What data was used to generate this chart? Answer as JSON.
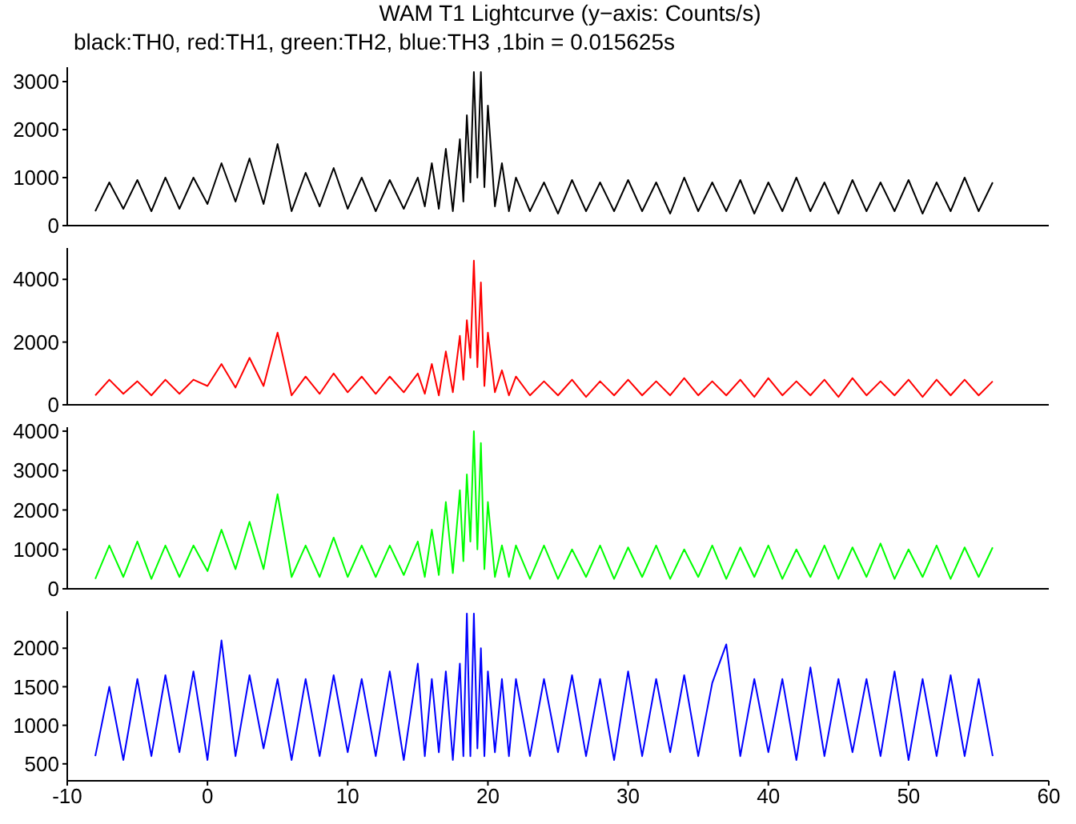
{
  "chart_data": [
    {
      "type": "line",
      "title": "WAM T1 Lightcurve (y−axis: Counts/s)",
      "subtitle": "black:TH0, red:TH1, green:TH2, blue:TH3 ,1bin = 0.015625s",
      "xlim": [
        -10,
        60
      ],
      "xticks": [
        -10,
        0,
        10,
        20,
        30,
        40,
        50,
        60
      ],
      "ylim": [
        0,
        3300
      ],
      "yticks": [
        0,
        1000,
        2000,
        3000
      ],
      "tick_labels": "y",
      "x": [
        -8,
        -7,
        -6,
        -5,
        -4,
        -3,
        -2,
        -1,
        0,
        1,
        2,
        3,
        4,
        5,
        6,
        7,
        8,
        9,
        10,
        11,
        12,
        13,
        14,
        15,
        15.5,
        16,
        16.5,
        17,
        17.5,
        18,
        18.25,
        18.5,
        18.75,
        19,
        19.25,
        19.5,
        19.75,
        20,
        20.5,
        21,
        21.5,
        22,
        23,
        24,
        25,
        26,
        27,
        28,
        29,
        30,
        31,
        32,
        33,
        34,
        35,
        36,
        37,
        38,
        39,
        40,
        41,
        42,
        43,
        44,
        45,
        46,
        47,
        48,
        49,
        50,
        51,
        52,
        53,
        54,
        55,
        56
      ],
      "series": [
        {
          "color": "#000000",
          "values": [
            300,
            900,
            350,
            950,
            300,
            1000,
            350,
            1000,
            450,
            1300,
            500,
            1400,
            450,
            1700,
            300,
            1100,
            400,
            1200,
            350,
            1000,
            300,
            950,
            350,
            1000,
            400,
            1300,
            350,
            1600,
            300,
            1800,
            500,
            2300,
            900,
            3200,
            1000,
            3200,
            800,
            2500,
            400,
            1300,
            300,
            1000,
            300,
            900,
            250,
            950,
            300,
            900,
            300,
            950,
            300,
            900,
            250,
            1000,
            300,
            900,
            300,
            950,
            250,
            900,
            300,
            1000,
            300,
            900,
            250,
            950,
            300,
            900,
            300,
            950,
            250,
            900,
            300,
            1000,
            300,
            900
          ]
        }
      ]
    },
    {
      "type": "line",
      "xlim": [
        -10,
        60
      ],
      "xticks": [
        -10,
        0,
        10,
        20,
        30,
        40,
        50,
        60
      ],
      "ylim": [
        0,
        5000
      ],
      "yticks": [
        0,
        2000,
        4000
      ],
      "tick_labels": "y",
      "x": [
        -8,
        -7,
        -6,
        -5,
        -4,
        -3,
        -2,
        -1,
        0,
        1,
        2,
        3,
        4,
        5,
        6,
        7,
        8,
        9,
        10,
        11,
        12,
        13,
        14,
        15,
        15.5,
        16,
        16.5,
        17,
        17.5,
        18,
        18.25,
        18.5,
        18.75,
        19,
        19.25,
        19.5,
        19.75,
        20,
        20.5,
        21,
        21.5,
        22,
        23,
        24,
        25,
        26,
        27,
        28,
        29,
        30,
        31,
        32,
        33,
        34,
        35,
        36,
        37,
        38,
        39,
        40,
        41,
        42,
        43,
        44,
        45,
        46,
        47,
        48,
        49,
        50,
        51,
        52,
        53,
        54,
        55,
        56
      ],
      "series": [
        {
          "color": "#ff0000",
          "values": [
            300,
            800,
            350,
            750,
            300,
            800,
            350,
            800,
            600,
            1300,
            550,
            1500,
            600,
            2300,
            300,
            900,
            350,
            1000,
            400,
            900,
            350,
            900,
            400,
            1000,
            350,
            1300,
            300,
            1700,
            400,
            2200,
            800,
            2700,
            1500,
            4600,
            1200,
            3900,
            600,
            2300,
            400,
            1100,
            300,
            900,
            300,
            750,
            300,
            800,
            250,
            750,
            300,
            800,
            300,
            750,
            300,
            850,
            300,
            750,
            300,
            800,
            250,
            850,
            300,
            750,
            300,
            800,
            250,
            850,
            300,
            750,
            300,
            800,
            250,
            800,
            300,
            800,
            300,
            750
          ]
        }
      ]
    },
    {
      "type": "line",
      "xlim": [
        -10,
        60
      ],
      "xticks": [
        -10,
        0,
        10,
        20,
        30,
        40,
        50,
        60
      ],
      "ylim": [
        0,
        4100
      ],
      "yticks": [
        0,
        1000,
        2000,
        3000,
        4000
      ],
      "tick_labels": "y",
      "x": [
        -8,
        -7,
        -6,
        -5,
        -4,
        -3,
        -2,
        -1,
        0,
        1,
        2,
        3,
        4,
        5,
        6,
        7,
        8,
        9,
        10,
        11,
        12,
        13,
        14,
        15,
        15.5,
        16,
        16.5,
        17,
        17.5,
        18,
        18.25,
        18.5,
        18.75,
        19,
        19.25,
        19.5,
        19.75,
        20,
        20.5,
        21,
        21.5,
        22,
        23,
        24,
        25,
        26,
        27,
        28,
        29,
        30,
        31,
        32,
        33,
        34,
        35,
        36,
        37,
        38,
        39,
        40,
        41,
        42,
        43,
        44,
        45,
        46,
        47,
        48,
        49,
        50,
        51,
        52,
        53,
        54,
        55,
        56
      ],
      "series": [
        {
          "color": "#00ff00",
          "values": [
            250,
            1100,
            300,
            1200,
            250,
            1100,
            300,
            1100,
            450,
            1500,
            500,
            1700,
            500,
            2400,
            300,
            1100,
            300,
            1300,
            300,
            1100,
            300,
            1100,
            350,
            1200,
            300,
            1500,
            350,
            2200,
            400,
            2500,
            700,
            2900,
            1200,
            4000,
            1000,
            3700,
            500,
            2200,
            300,
            1100,
            300,
            1100,
            250,
            1100,
            250,
            1000,
            300,
            1100,
            250,
            1050,
            300,
            1100,
            250,
            1000,
            300,
            1100,
            250,
            1050,
            300,
            1100,
            250,
            1000,
            300,
            1100,
            250,
            1050,
            300,
            1150,
            250,
            1000,
            300,
            1100,
            250,
            1050,
            300,
            1050
          ]
        }
      ]
    },
    {
      "type": "line",
      "xlim": [
        -10,
        60
      ],
      "xticks": [
        -10,
        0,
        10,
        20,
        30,
        40,
        50,
        60
      ],
      "ylim": [
        280,
        2480
      ],
      "yticks": [
        500,
        1000,
        1500,
        2000
      ],
      "x": [
        -8,
        -7,
        -6,
        -5,
        -4,
        -3,
        -2,
        -1,
        0,
        1,
        2,
        3,
        4,
        5,
        6,
        7,
        8,
        9,
        10,
        11,
        12,
        13,
        14,
        15,
        15.5,
        16,
        16.5,
        17,
        17.5,
        18,
        18.25,
        18.5,
        18.75,
        19,
        19.25,
        19.5,
        19.75,
        20,
        20.5,
        21,
        21.5,
        22,
        23,
        24,
        25,
        26,
        27,
        28,
        29,
        30,
        31,
        32,
        33,
        34,
        35,
        36,
        37,
        38,
        39,
        40,
        41,
        42,
        43,
        44,
        45,
        46,
        47,
        48,
        49,
        50,
        51,
        52,
        53,
        54,
        55,
        56
      ],
      "series": [
        {
          "color": "#0000ff",
          "values": [
            600,
            1500,
            550,
            1600,
            600,
            1650,
            650,
            1700,
            550,
            2100,
            600,
            1650,
            700,
            1600,
            550,
            1600,
            600,
            1650,
            650,
            1600,
            600,
            1700,
            550,
            1800,
            600,
            1600,
            650,
            1700,
            550,
            1800,
            600,
            2450,
            600,
            2450,
            700,
            2000,
            600,
            1700,
            650,
            1600,
            600,
            1600,
            600,
            1600,
            650,
            1650,
            600,
            1600,
            550,
            1700,
            600,
            1600,
            650,
            1650,
            600,
            1550,
            2050,
            600,
            1600,
            650,
            1600,
            550,
            1750,
            600,
            1600,
            650,
            1600,
            600,
            1700,
            550,
            1600,
            600,
            1650,
            600,
            1600,
            600
          ]
        }
      ]
    }
  ]
}
